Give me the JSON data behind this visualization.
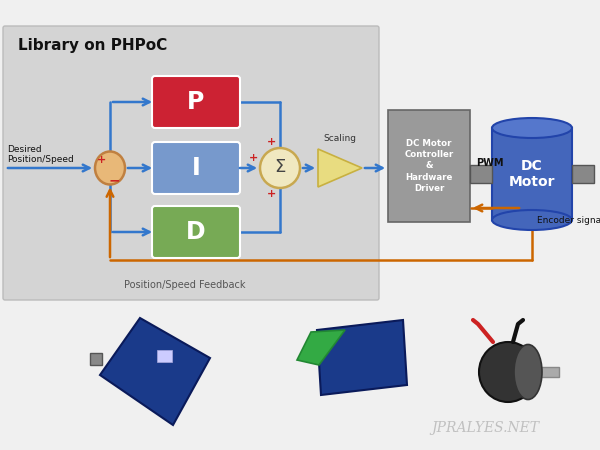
{
  "bg_color": "#f0f0f0",
  "panel_color": "#d4d4d4",
  "panel_edgecolor": "#bbbbbb",
  "library_label": "Library on PHPoC",
  "desired_label": "Desired\nPosition/Speed",
  "feedback_label": "Position/Speed Feedback",
  "encoder_label": "Encoder signal",
  "pwm_label": "PWM",
  "scaling_label": "Scaling",
  "pid_box_labels": [
    "P",
    "I",
    "D"
  ],
  "pid_box_colors": [
    "#cc2233",
    "#7799cc",
    "#77aa55"
  ],
  "pid_box_edge": "#ffffff",
  "sum_face": "#f0e8c0",
  "sum_edge": "#c8a850",
  "tri_face": "#e8dc80",
  "tri_edge": "#c8b040",
  "ctrl_face": "#9a9a9a",
  "ctrl_edge": "#666666",
  "ctrl_text": "#ffffff",
  "mot_body": "#4466bb",
  "mot_edge": "#2244aa",
  "mot_cap": "#5577cc",
  "mot_text": "#ffffff",
  "shaft_face": "#888888",
  "shaft_edge": "#555555",
  "err_face": "#e8b878",
  "err_edge": "#c08040",
  "arrow_blue": "#3377cc",
  "arrow_orange": "#cc6600",
  "arrow_black": "#111111",
  "plus_color": "#cc2222",
  "minus_color": "#cc2222",
  "watermark": "JPRALYES.NET",
  "watermark_color": "#bbbbbb",
  "board1_color": "#1a3a8a",
  "board2_color": "#2244aa",
  "motor_dark": "#222222"
}
